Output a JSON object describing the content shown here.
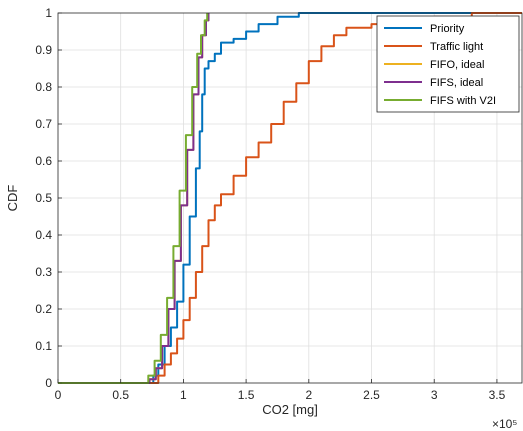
{
  "chart_data": {
    "type": "line",
    "xlabel": "CO2 [mg]",
    "ylabel": "CDF",
    "x_exponent": "×10⁵",
    "xlim": [
      0,
      3.7
    ],
    "ylim": [
      0,
      1
    ],
    "grid": true,
    "legend_position": "top-right",
    "x_ticks": [
      "0",
      "0.5",
      "1",
      "1.5",
      "2",
      "2.5",
      "3",
      "3.5"
    ],
    "x_tick_values": [
      0,
      0.5,
      1,
      1.5,
      2,
      2.5,
      3,
      3.5
    ],
    "y_ticks": [
      "0",
      "0.1",
      "0.2",
      "0.3",
      "0.4",
      "0.5",
      "0.6",
      "0.7",
      "0.8",
      "0.9",
      "1"
    ],
    "y_tick_values": [
      0,
      0.1,
      0.2,
      0.3,
      0.4,
      0.5,
      0.6,
      0.7,
      0.8,
      0.9,
      1
    ],
    "series": [
      {
        "name": "Priority",
        "color": "#0072BD",
        "points": [
          [
            0,
            0
          ],
          [
            0.72,
            0
          ],
          [
            0.76,
            0.02
          ],
          [
            0.8,
            0.05
          ],
          [
            0.85,
            0.1
          ],
          [
            0.9,
            0.15
          ],
          [
            0.95,
            0.22
          ],
          [
            1.0,
            0.32
          ],
          [
            1.05,
            0.45
          ],
          [
            1.1,
            0.58
          ],
          [
            1.13,
            0.68
          ],
          [
            1.15,
            0.78
          ],
          [
            1.17,
            0.85
          ],
          [
            1.2,
            0.87
          ],
          [
            1.25,
            0.89
          ],
          [
            1.3,
            0.92
          ],
          [
            1.4,
            0.93
          ],
          [
            1.5,
            0.95
          ],
          [
            1.6,
            0.97
          ],
          [
            1.75,
            0.99
          ],
          [
            1.92,
            1.0
          ],
          [
            3.7,
            1.0
          ]
        ]
      },
      {
        "name": "Traffic light",
        "color": "#D95319",
        "points": [
          [
            0,
            0
          ],
          [
            0.73,
            0
          ],
          [
            0.8,
            0.02
          ],
          [
            0.85,
            0.05
          ],
          [
            0.9,
            0.08
          ],
          [
            0.95,
            0.12
          ],
          [
            1.0,
            0.17
          ],
          [
            1.05,
            0.23
          ],
          [
            1.1,
            0.3
          ],
          [
            1.15,
            0.37
          ],
          [
            1.2,
            0.44
          ],
          [
            1.25,
            0.48
          ],
          [
            1.3,
            0.51
          ],
          [
            1.4,
            0.56
          ],
          [
            1.5,
            0.61
          ],
          [
            1.6,
            0.65
          ],
          [
            1.7,
            0.7
          ],
          [
            1.8,
            0.76
          ],
          [
            1.9,
            0.81
          ],
          [
            2.0,
            0.87
          ],
          [
            2.1,
            0.91
          ],
          [
            2.2,
            0.94
          ],
          [
            2.3,
            0.96
          ],
          [
            2.5,
            0.97
          ],
          [
            2.7,
            0.98
          ],
          [
            3.0,
            0.99
          ],
          [
            3.3,
            1.0
          ],
          [
            3.7,
            1.0
          ]
        ]
      },
      {
        "name": "FIFO, ideal",
        "color": "#EDB120",
        "points": [
          [
            0,
            0
          ],
          [
            0.7,
            0
          ],
          [
            0.73,
            0.01
          ],
          [
            0.78,
            0.04
          ],
          [
            0.83,
            0.1
          ],
          [
            0.88,
            0.2
          ],
          [
            0.93,
            0.33
          ],
          [
            0.98,
            0.48
          ],
          [
            1.03,
            0.63
          ],
          [
            1.08,
            0.78
          ],
          [
            1.12,
            0.88
          ],
          [
            1.15,
            0.94
          ],
          [
            1.18,
            0.98
          ],
          [
            1.2,
            1.0
          ]
        ]
      },
      {
        "name": "FIFS, ideal",
        "color": "#7E2F8E",
        "points": [
          [
            0,
            0
          ],
          [
            0.7,
            0
          ],
          [
            0.73,
            0.01
          ],
          [
            0.78,
            0.04
          ],
          [
            0.83,
            0.1
          ],
          [
            0.88,
            0.2
          ],
          [
            0.93,
            0.33
          ],
          [
            0.98,
            0.48
          ],
          [
            1.03,
            0.63
          ],
          [
            1.08,
            0.78
          ],
          [
            1.12,
            0.88
          ],
          [
            1.15,
            0.94
          ],
          [
            1.18,
            0.98
          ],
          [
            1.2,
            1.0
          ]
        ]
      },
      {
        "name": "FIFS with V2I",
        "color": "#77AC30",
        "points": [
          [
            0,
            0
          ],
          [
            0.68,
            0
          ],
          [
            0.72,
            0.02
          ],
          [
            0.77,
            0.06
          ],
          [
            0.82,
            0.13
          ],
          [
            0.87,
            0.23
          ],
          [
            0.92,
            0.37
          ],
          [
            0.97,
            0.52
          ],
          [
            1.02,
            0.67
          ],
          [
            1.07,
            0.8
          ],
          [
            1.11,
            0.89
          ],
          [
            1.14,
            0.94
          ],
          [
            1.17,
            0.98
          ],
          [
            1.19,
            1.0
          ]
        ]
      }
    ]
  }
}
